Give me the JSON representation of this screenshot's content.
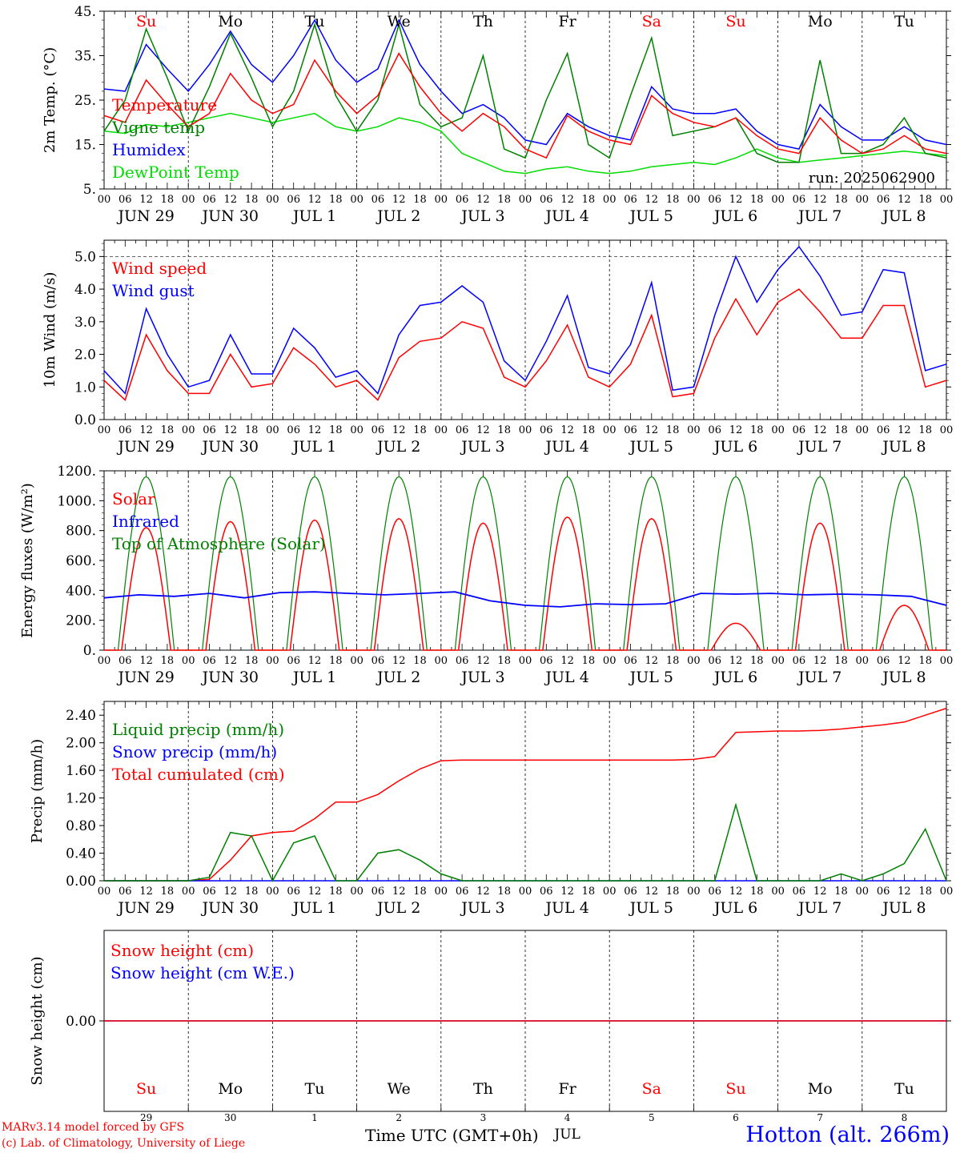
{
  "run_label": "run: 2025062900",
  "x_axis": {
    "hour_ticks": [
      "00",
      "06",
      "12",
      "18"
    ],
    "end_hour": "00",
    "date_labels": [
      "JUN 29",
      "JUN 30",
      "JUL  1",
      "JUL  2",
      "JUL  3",
      "JUL  4",
      "JUL  5",
      "JUL  6",
      "JUL  7",
      "JUL  8"
    ]
  },
  "weekdays": [
    {
      "label": "Su",
      "color": "#ff0000"
    },
    {
      "label": "Mo",
      "color": "#000000"
    },
    {
      "label": "Tu",
      "color": "#000000"
    },
    {
      "label": "We",
      "color": "#000000"
    },
    {
      "label": "Th",
      "color": "#000000"
    },
    {
      "label": "Fr",
      "color": "#000000"
    },
    {
      "label": "Sa",
      "color": "#ff0000"
    },
    {
      "label": "Su",
      "color": "#ff0000"
    },
    {
      "label": "Mo",
      "color": "#000000"
    },
    {
      "label": "Tu",
      "color": "#000000"
    }
  ],
  "bottom_axis": {
    "day_numbers": [
      "29",
      "30",
      "1",
      "2",
      "3",
      "4",
      "5",
      "6",
      "7",
      "8"
    ],
    "month_label": "JUL",
    "title": "Time UTC (GMT+0h)"
  },
  "credits": {
    "line1": "MARv3.14 model forced by GFS",
    "line2": "(c) Lab. of Climatology, University of Liege"
  },
  "station": "Hotton (alt. 266m)",
  "colors": {
    "red": "#ff0000",
    "green": "#008000",
    "blue": "#0000ff",
    "light_green": "#00dd00"
  },
  "chart_data": [
    {
      "type": "line",
      "ylabel": "2m Temp. (°C)",
      "ylim": [
        5,
        45
      ],
      "yticks": [
        "5.",
        "15.",
        "25.",
        "35.",
        "45."
      ],
      "ytick_values": [
        5,
        15,
        25,
        35,
        45
      ],
      "x": [
        0,
        6,
        12,
        18,
        24,
        30,
        36,
        42,
        48,
        54,
        60,
        66,
        72,
        78,
        84,
        90,
        96,
        102,
        108,
        114,
        120,
        126,
        132,
        138,
        144,
        150,
        156,
        162,
        168,
        174,
        180,
        186,
        192,
        198,
        204,
        210,
        216,
        222,
        228,
        234,
        240
      ],
      "series": [
        {
          "name": "Temperature",
          "color": "#ff0000",
          "values": [
            21.5,
            20,
            29.5,
            24,
            19,
            22,
            31,
            25,
            22,
            24,
            34,
            27,
            22,
            26,
            35.5,
            28,
            22,
            18,
            22,
            19,
            14,
            12,
            21.5,
            18,
            16,
            15,
            26,
            22,
            20,
            19,
            21,
            17,
            14,
            13,
            21,
            16,
            13,
            14,
            17,
            14,
            13
          ]
        },
        {
          "name": "Vigne temp",
          "color": "#008000",
          "values": [
            18,
            25,
            41,
            30,
            18,
            28,
            40,
            30,
            19,
            27,
            42,
            26,
            18,
            25,
            42,
            24,
            19,
            21,
            35,
            14,
            12,
            25,
            35.5,
            15,
            12,
            26,
            39,
            17,
            18,
            19,
            21,
            13,
            11,
            11,
            34,
            13,
            13,
            15,
            21,
            13,
            12
          ]
        },
        {
          "name": "Humidex",
          "color": "#0000ff",
          "values": [
            27.5,
            27,
            37.5,
            32,
            27,
            33,
            40.5,
            33,
            29,
            35,
            43,
            34,
            29,
            32,
            43,
            33,
            27,
            22,
            24,
            21,
            16,
            15,
            22,
            19,
            17,
            16,
            28,
            23,
            22,
            22,
            23,
            18,
            15,
            14,
            24,
            19,
            16,
            16,
            19,
            16,
            15
          ]
        },
        {
          "name": "DewPoint Temp",
          "color": "#00dd00",
          "values": [
            18,
            17.5,
            19.5,
            19,
            20,
            21,
            22,
            21,
            20,
            21,
            22,
            19,
            18,
            19,
            21,
            20,
            18,
            13,
            11,
            9,
            8.5,
            9.5,
            10,
            9,
            8.5,
            9,
            10,
            10.5,
            11,
            10.5,
            12,
            14,
            12,
            11,
            11.5,
            12,
            12.5,
            13,
            13.5,
            13,
            12.5
          ]
        }
      ]
    },
    {
      "type": "line",
      "ylabel": "10m Wind (m/s)",
      "ylim": [
        0,
        5.5
      ],
      "yticks": [
        "0.0",
        "1.0",
        "2.0",
        "3.0",
        "4.0",
        "5.0"
      ],
      "ytick_values": [
        0,
        1,
        2,
        3,
        4,
        5
      ],
      "reference_line": 5.0,
      "x": [
        0,
        6,
        12,
        18,
        24,
        30,
        36,
        42,
        48,
        54,
        60,
        66,
        72,
        78,
        84,
        90,
        96,
        102,
        108,
        114,
        120,
        126,
        132,
        138,
        144,
        150,
        156,
        162,
        168,
        174,
        180,
        186,
        192,
        198,
        204,
        210,
        216,
        222,
        228,
        234,
        240
      ],
      "series": [
        {
          "name": "Wind speed",
          "color": "#ff0000",
          "values": [
            1.2,
            0.6,
            2.6,
            1.5,
            0.8,
            0.8,
            2.0,
            1.0,
            1.1,
            2.2,
            1.7,
            1.0,
            1.2,
            0.6,
            1.9,
            2.4,
            2.5,
            3.0,
            2.8,
            1.3,
            1.0,
            1.8,
            2.9,
            1.3,
            1.0,
            1.7,
            3.2,
            0.7,
            0.8,
            2.5,
            3.7,
            2.6,
            3.6,
            4.0,
            3.3,
            2.5,
            2.5,
            3.5,
            3.5,
            1.0,
            1.2
          ]
        },
        {
          "name": "Wind gust",
          "color": "#0000ff",
          "values": [
            1.5,
            0.8,
            3.4,
            2.0,
            1.0,
            1.2,
            2.6,
            1.4,
            1.4,
            2.8,
            2.2,
            1.3,
            1.5,
            0.8,
            2.6,
            3.5,
            3.6,
            4.1,
            3.6,
            1.8,
            1.2,
            2.4,
            3.8,
            1.6,
            1.4,
            2.3,
            4.2,
            0.9,
            1.0,
            3.2,
            5.0,
            3.6,
            4.6,
            5.3,
            4.4,
            3.2,
            3.3,
            4.6,
            4.5,
            1.5,
            1.7
          ]
        }
      ]
    },
    {
      "type": "line",
      "ylabel": "Energy fluxes (W/m²)",
      "ylim": [
        0,
        1200
      ],
      "yticks": [
        "0.",
        "200.",
        "400.",
        "600.",
        "800.",
        "1000.",
        "1200."
      ],
      "ytick_values": [
        0,
        200,
        400,
        600,
        800,
        1000,
        1200
      ],
      "series": [
        {
          "name": "Solar",
          "color": "#ff0000",
          "daily_peak": [
            820,
            860,
            870,
            880,
            850,
            890,
            880,
            180,
            850,
            300
          ]
        },
        {
          "name": "Infrared",
          "color": "#0000ff",
          "values": [
            350,
            370,
            360,
            380,
            350,
            385,
            390,
            380,
            370,
            380,
            390,
            330,
            300,
            290,
            310,
            305,
            310,
            380,
            375,
            380,
            370,
            375,
            370,
            360,
            300
          ]
        },
        {
          "name": "Top of Atmosphere (Solar)",
          "color": "#008000",
          "daily_peak": 1160
        }
      ]
    },
    {
      "type": "line",
      "ylabel": "Precip (mm/h)",
      "ylim": [
        0,
        2.6
      ],
      "yticks": [
        "0.00",
        "0.40",
        "0.80",
        "1.20",
        "1.60",
        "2.00",
        "2.40"
      ],
      "ytick_values": [
        0,
        0.4,
        0.8,
        1.2,
        1.6,
        2.0,
        2.4
      ],
      "x": [
        0,
        6,
        12,
        18,
        24,
        30,
        36,
        42,
        48,
        54,
        60,
        66,
        72,
        78,
        84,
        90,
        96,
        102,
        108,
        114,
        120,
        126,
        132,
        138,
        144,
        150,
        156,
        162,
        168,
        174,
        180,
        186,
        192,
        198,
        204,
        210,
        216,
        222,
        228,
        234,
        240
      ],
      "series": [
        {
          "name": "Liquid precip (mm/h)",
          "color": "#008000",
          "values": [
            0,
            0,
            0,
            0,
            0,
            0.05,
            0.7,
            0.65,
            0,
            0.55,
            0.65,
            0,
            0,
            0.4,
            0.45,
            0.3,
            0.1,
            0,
            0,
            0,
            0,
            0,
            0,
            0,
            0,
            0,
            0,
            0,
            0,
            0,
            1.1,
            0,
            0,
            0,
            0,
            0.1,
            0,
            0.1,
            0.25,
            0.75,
            0
          ]
        },
        {
          "name": "Snow precip (mm/h)",
          "color": "#0000ff",
          "values": [
            0,
            0,
            0,
            0,
            0,
            0,
            0,
            0,
            0,
            0,
            0,
            0,
            0,
            0,
            0,
            0,
            0,
            0,
            0,
            0,
            0,
            0,
            0,
            0,
            0,
            0,
            0,
            0,
            0,
            0,
            0,
            0,
            0,
            0,
            0,
            0,
            0,
            0,
            0,
            0,
            0
          ]
        },
        {
          "name": "Total cumulated (cm)",
          "color": "#ff0000",
          "values": [
            0,
            0,
            0,
            0,
            0,
            0.02,
            0.3,
            0.65,
            0.7,
            0.72,
            0.9,
            1.14,
            1.14,
            1.25,
            1.45,
            1.62,
            1.74,
            1.75,
            1.75,
            1.75,
            1.75,
            1.75,
            1.75,
            1.75,
            1.75,
            1.75,
            1.75,
            1.75,
            1.76,
            1.8,
            2.15,
            2.16,
            2.17,
            2.17,
            2.18,
            2.2,
            2.23,
            2.26,
            2.3,
            2.4,
            2.5
          ]
        }
      ]
    },
    {
      "type": "line",
      "ylabel": "Snow height (cm)",
      "ylim": [
        -1,
        1
      ],
      "yticks": [
        "0.00"
      ],
      "ytick_values": [
        0
      ],
      "x": [
        0,
        240
      ],
      "series": [
        {
          "name": "Snow height (cm)",
          "color": "#ff0000",
          "values": [
            0,
            0
          ]
        },
        {
          "name": "Snow height (cm W.E.)",
          "color": "#0000ff",
          "values": [
            0,
            0
          ]
        }
      ]
    }
  ]
}
